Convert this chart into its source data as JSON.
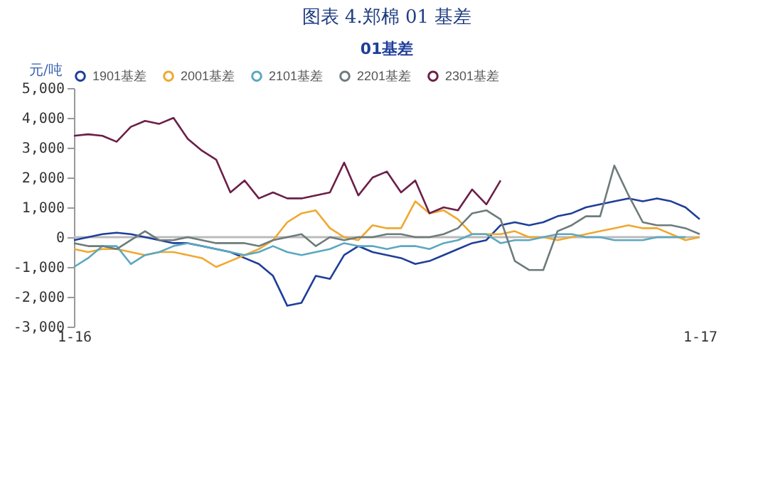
{
  "chart_data": {
    "type": "line",
    "title": "图表 4.郑棉 01 基差",
    "subtitle": "01基差",
    "ylabel": "元/吨",
    "categories": [
      "1-16",
      null,
      null,
      null,
      null,
      null,
      null,
      null,
      null,
      null,
      null,
      null,
      null,
      null,
      null,
      null,
      null,
      null,
      null,
      null,
      null,
      null,
      null,
      null,
      null,
      null,
      null,
      null,
      null,
      null,
      null,
      null,
      null,
      null,
      null,
      null,
      null,
      null,
      null,
      null,
      null,
      null,
      null,
      null,
      "1-17"
    ],
    "series": [
      {
        "name": "1901基差",
        "color": "#1f3e99",
        "values": [
          -100,
          0,
          100,
          150,
          100,
          0,
          -100,
          -200,
          -200,
          -300,
          -400,
          -500,
          -700,
          -900,
          -1300,
          -2300,
          -2200,
          -1300,
          -1400,
          -600,
          -300,
          -500,
          -600,
          -700,
          -900,
          -800,
          -600,
          -400,
          -200,
          -100,
          400,
          500,
          400,
          500,
          700,
          800,
          1000,
          1100,
          1200,
          1300,
          1200,
          1300,
          1200,
          1000,
          600
        ]
      },
      {
        "name": "2001基差",
        "color": "#f0a830",
        "values": [
          -400,
          -500,
          -400,
          -400,
          -500,
          -600,
          -500,
          -500,
          -600,
          -700,
          -1000,
          -800,
          -600,
          -400,
          -100,
          500,
          800,
          900,
          300,
          0,
          -100,
          400,
          300,
          300,
          1200,
          800,
          900,
          600,
          100,
          100,
          100,
          200,
          0,
          0,
          -100,
          0,
          100,
          200,
          300,
          400,
          300,
          300,
          100,
          -100,
          0
        ]
      },
      {
        "name": "2101基差",
        "color": "#5ba8c0",
        "values": [
          -1000,
          -700,
          -300,
          -300,
          -900,
          -600,
          -500,
          -300,
          -200,
          -300,
          -400,
          -500,
          -600,
          -500,
          -300,
          -500,
          -600,
          -500,
          -400,
          -200,
          -300,
          -300,
          -400,
          -300,
          -300,
          -400,
          -200,
          -100,
          100,
          100,
          -200,
          -100,
          -100,
          0,
          100,
          100,
          0,
          0,
          -100,
          -100,
          -100,
          0,
          0,
          0,
          null
        ]
      },
      {
        "name": "2201基差",
        "color": "#6d7b7b",
        "values": [
          -200,
          -300,
          -300,
          -400,
          -100,
          200,
          -100,
          -100,
          0,
          -100,
          -200,
          -200,
          -200,
          -300,
          -100,
          0,
          100,
          -300,
          0,
          -100,
          0,
          0,
          100,
          100,
          0,
          0,
          100,
          300,
          800,
          900,
          600,
          -800,
          -1100,
          -1100,
          200,
          400,
          700,
          700,
          2400,
          1400,
          500,
          400,
          400,
          300,
          100
        ]
      },
      {
        "name": "2301基差",
        "color": "#6b1f48",
        "values": [
          3400,
          3450,
          3400,
          3200,
          3700,
          3900,
          3800,
          4000,
          3300,
          2900,
          2600,
          1500,
          1900,
          1300,
          1500,
          1300,
          1300,
          1400,
          1500,
          2500,
          1400,
          2000,
          2200,
          1500,
          1900,
          800,
          1000,
          900,
          1600,
          1100,
          1900,
          null,
          null,
          null,
          null,
          null,
          null,
          null,
          null,
          null,
          null,
          null,
          null,
          null,
          null
        ]
      }
    ],
    "ylim": [
      -3000,
      5000
    ],
    "yticks": [
      {
        "value": -3000,
        "label": "-3,000"
      },
      {
        "value": -2000,
        "label": "-2,000"
      },
      {
        "value": -1000,
        "label": "-1,000"
      },
      0,
      {
        "value": 1000,
        "label": "1,000"
      },
      {
        "value": 2000,
        "label": "2,000"
      },
      {
        "value": 3000,
        "label": "3,000"
      },
      {
        "value": 4000,
        "label": "4,000"
      },
      {
        "value": 5000,
        "label": "5,000"
      }
    ],
    "ref_lines": [
      {
        "axis": "y",
        "value": 0,
        "color": "#bbbbbb"
      }
    ],
    "legend": "top",
    "marker": "none",
    "line_style": "solid",
    "grid": false
  }
}
